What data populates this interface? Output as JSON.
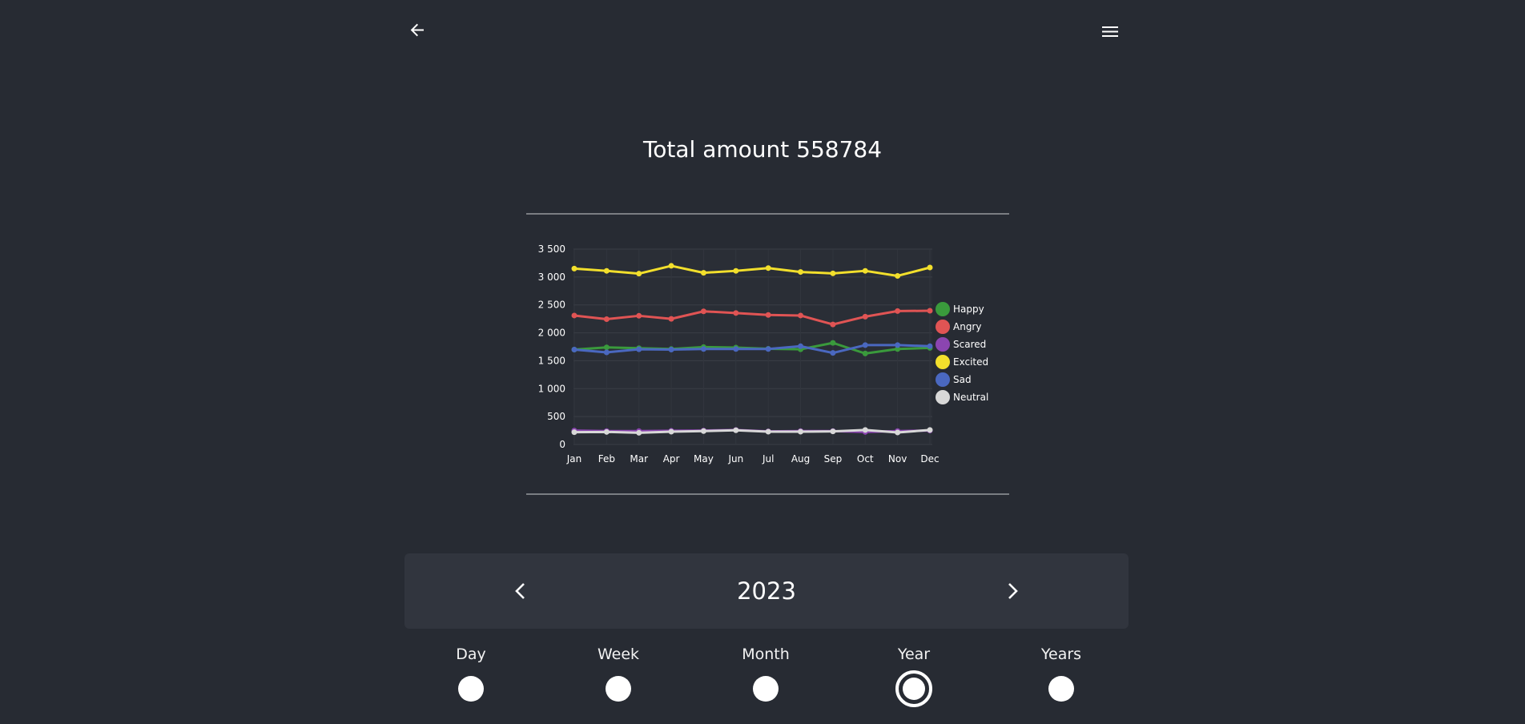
{
  "header": {
    "back_icon": "arrow-left-icon",
    "menu_icon": "hamburger-menu-icon"
  },
  "summary": {
    "title": "Total amount 558784"
  },
  "chart_data": {
    "type": "line",
    "categories": [
      "Jan",
      "Feb",
      "Mar",
      "Apr",
      "May",
      "Jun",
      "Jul",
      "Aug",
      "Sep",
      "Oct",
      "Nov",
      "Dec"
    ],
    "yticks": [
      "0",
      "500",
      "1 000",
      "1 500",
      "2 000",
      "2 500",
      "3 000",
      "3 500"
    ],
    "ylim": [
      0,
      3500
    ],
    "grid": true,
    "legend_position": "right",
    "series": [
      {
        "name": "Happy",
        "color": "#3a9a3c",
        "values": [
          1700,
          1740,
          1725,
          1710,
          1745,
          1735,
          1715,
          1705,
          1820,
          1630,
          1710,
          1730
        ]
      },
      {
        "name": "Angry",
        "color": "#e05454",
        "values": [
          2310,
          2245,
          2305,
          2250,
          2385,
          2355,
          2320,
          2310,
          2150,
          2290,
          2390,
          2395
        ]
      },
      {
        "name": "Scared",
        "color": "#8b45b0",
        "values": [
          250,
          240,
          240,
          245,
          250,
          260,
          235,
          240,
          240,
          225,
          240,
          250
        ]
      },
      {
        "name": "Excited",
        "color": "#f2df2c",
        "values": [
          3150,
          3110,
          3060,
          3200,
          3075,
          3110,
          3160,
          3090,
          3065,
          3110,
          3020,
          3170
        ]
      },
      {
        "name": "Sad",
        "color": "#4a68c0",
        "values": [
          1700,
          1650,
          1705,
          1700,
          1710,
          1710,
          1710,
          1760,
          1640,
          1780,
          1780,
          1760
        ]
      },
      {
        "name": "Neutral",
        "color": "#d8d8d8",
        "values": [
          220,
          225,
          210,
          230,
          240,
          255,
          230,
          230,
          235,
          260,
          215,
          260
        ]
      }
    ]
  },
  "period": {
    "year": "2023",
    "prev_icon": "chevron-left-icon",
    "next_icon": "chevron-right-icon"
  },
  "ranges": [
    {
      "label": "Day",
      "selected": false
    },
    {
      "label": "Week",
      "selected": false
    },
    {
      "label": "Month",
      "selected": false
    },
    {
      "label": "Year",
      "selected": true
    },
    {
      "label": "Years",
      "selected": false
    }
  ]
}
